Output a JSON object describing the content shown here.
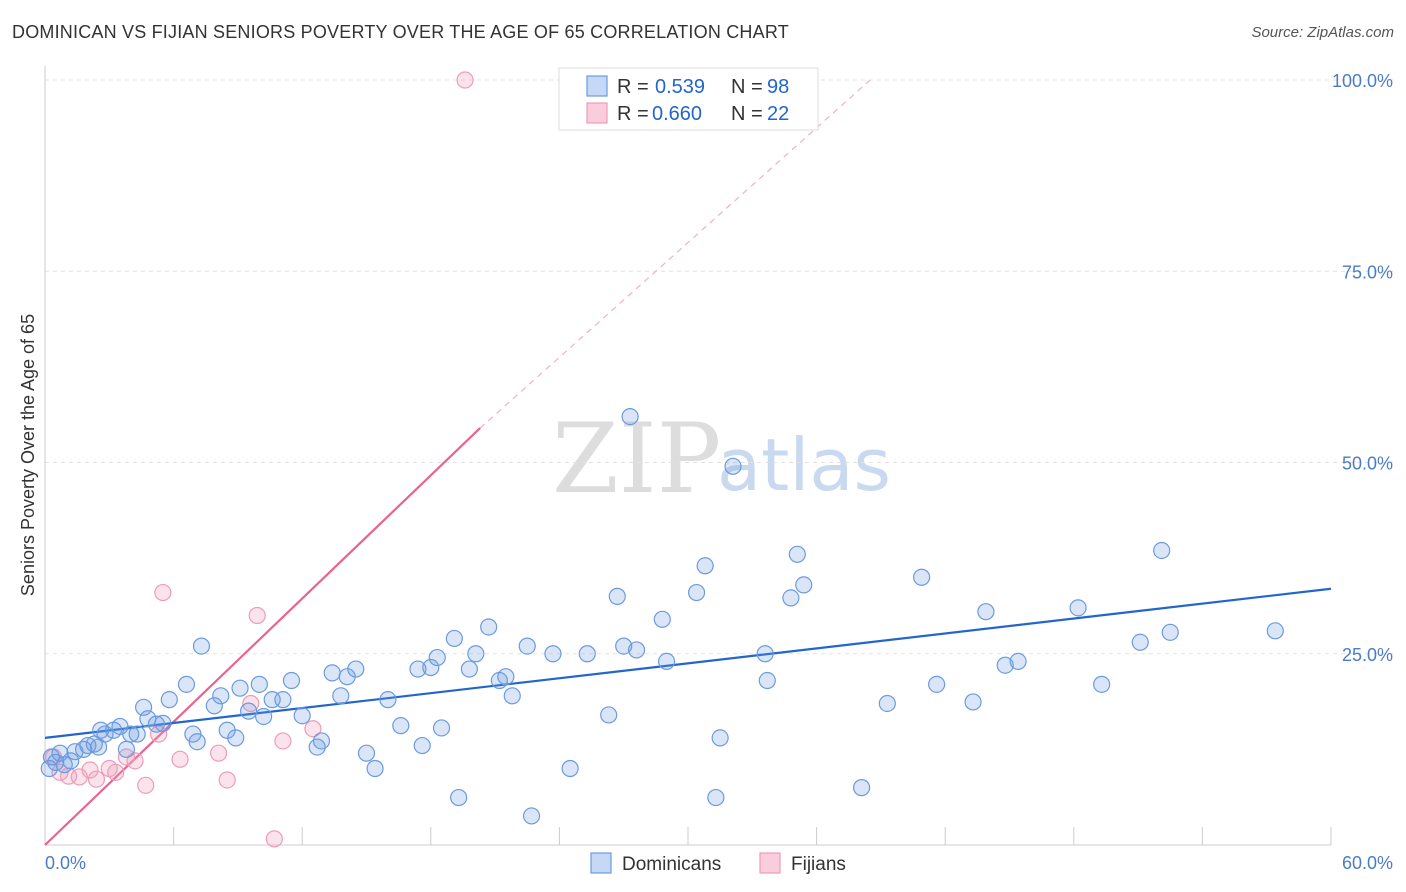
{
  "header": {
    "title": "DOMINICAN VS FIJIAN SENIORS POVERTY OVER THE AGE OF 65 CORRELATION CHART",
    "source": "Source: ZipAtlas.com"
  },
  "watermark": {
    "zip": "ZIP",
    "atlas": "atlas"
  },
  "legend": {
    "rows": [
      {
        "r_label": "R = ",
        "r_value": "0.539",
        "n_label": "N = ",
        "n_value": "98"
      },
      {
        "r_label": "R = ",
        "r_value": "0.660",
        "n_label": "N = ",
        "n_value": "22"
      }
    ],
    "bottom": [
      "Dominicans",
      "Fijians"
    ]
  },
  "chart_data": {
    "type": "scatter",
    "title": "DOMINICAN VS FIJIAN SENIORS POVERTY OVER THE AGE OF 65 CORRELATION CHART",
    "xlabel": "",
    "ylabel": "Seniors Poverty Over the Age of 65",
    "xlim": [
      0,
      60
    ],
    "ylim": [
      0,
      100
    ],
    "x_tick_labels": [
      "0.0%",
      "60.0%"
    ],
    "y_tick_labels": [
      "25.0%",
      "50.0%",
      "75.0%",
      "100.0%"
    ],
    "y_ticks": [
      25,
      50,
      75,
      100
    ],
    "colors": {
      "dominicans": "#6a9be0",
      "fijians": "#ef9bb8",
      "dominicans_line": "#2266cc",
      "fijians_line": "#e8648e",
      "tick_text": "#4a7cc7"
    },
    "series": [
      {
        "name": "Dominicans",
        "r": 0.539,
        "n": 98,
        "trend": {
          "x": [
            0,
            60
          ],
          "y": [
            14.0,
            33.5
          ]
        },
        "points": [
          [
            0.3,
            11.5
          ],
          [
            0.5,
            10.8
          ],
          [
            0.7,
            12.0
          ],
          [
            0.9,
            10.5
          ],
          [
            1.2,
            11.0
          ],
          [
            1.4,
            12.2
          ],
          [
            1.8,
            12.5
          ],
          [
            2.0,
            13.0
          ],
          [
            2.3,
            13.2
          ],
          [
            2.5,
            12.8
          ],
          [
            2.6,
            15.0
          ],
          [
            2.8,
            14.5
          ],
          [
            3.2,
            15.0
          ],
          [
            3.5,
            15.5
          ],
          [
            3.8,
            12.5
          ],
          [
            4.0,
            14.5
          ],
          [
            4.3,
            14.5
          ],
          [
            4.6,
            18.0
          ],
          [
            4.8,
            16.5
          ],
          [
            5.2,
            15.8
          ],
          [
            5.8,
            19.0
          ],
          [
            5.5,
            15.9
          ],
          [
            6.6,
            21.0
          ],
          [
            6.9,
            14.5
          ],
          [
            7.1,
            13.5
          ],
          [
            7.9,
            18.2
          ],
          [
            8.2,
            19.5
          ],
          [
            8.5,
            15.0
          ],
          [
            8.9,
            14.0
          ],
          [
            9.1,
            20.5
          ],
          [
            9.5,
            17.5
          ],
          [
            10.0,
            21.0
          ],
          [
            10.2,
            16.8
          ],
          [
            10.6,
            19.0
          ],
          [
            11.1,
            19.0
          ],
          [
            11.5,
            21.5
          ],
          [
            12.0,
            16.9
          ],
          [
            7.3,
            26.0
          ],
          [
            12.7,
            12.8
          ],
          [
            12.9,
            13.6
          ],
          [
            13.4,
            22.5
          ],
          [
            13.8,
            19.5
          ],
          [
            14.5,
            23.0
          ],
          [
            14.1,
            22.0
          ],
          [
            15.0,
            12.0
          ],
          [
            15.4,
            10.0
          ],
          [
            16.0,
            19.0
          ],
          [
            16.6,
            15.6
          ],
          [
            17.4,
            23.0
          ],
          [
            17.6,
            13.0
          ],
          [
            18.0,
            23.2
          ],
          [
            18.3,
            24.5
          ],
          [
            18.5,
            15.3
          ],
          [
            19.1,
            27.0
          ],
          [
            19.3,
            6.2
          ],
          [
            19.8,
            23.0
          ],
          [
            20.1,
            25.0
          ],
          [
            20.7,
            28.5
          ],
          [
            21.2,
            21.5
          ],
          [
            21.5,
            22.0
          ],
          [
            21.8,
            19.5
          ],
          [
            22.5,
            26.0
          ],
          [
            22.7,
            3.8
          ],
          [
            23.7,
            25.0
          ],
          [
            24.5,
            10.0
          ],
          [
            25.3,
            25.0
          ],
          [
            26.3,
            17.0
          ],
          [
            26.7,
            32.5
          ],
          [
            27.3,
            56.0
          ],
          [
            27.0,
            26.0
          ],
          [
            27.6,
            25.5
          ],
          [
            28.8,
            29.5
          ],
          [
            29.0,
            24.0
          ],
          [
            30.4,
            33.0
          ],
          [
            30.8,
            36.5
          ],
          [
            31.3,
            6.2
          ],
          [
            31.5,
            14.0
          ],
          [
            32.1,
            49.5
          ],
          [
            33.6,
            25.0
          ],
          [
            33.7,
            21.5
          ],
          [
            34.8,
            32.3
          ],
          [
            35.1,
            38.0
          ],
          [
            35.4,
            34.0
          ],
          [
            38.1,
            7.5
          ],
          [
            39.3,
            18.5
          ],
          [
            40.9,
            35.0
          ],
          [
            41.6,
            21.0
          ],
          [
            43.3,
            18.7
          ],
          [
            43.9,
            30.5
          ],
          [
            44.8,
            23.5
          ],
          [
            45.4,
            24.0
          ],
          [
            48.2,
            31.0
          ],
          [
            49.3,
            21.0
          ],
          [
            51.1,
            26.5
          ],
          [
            52.1,
            38.5
          ],
          [
            52.5,
            27.8
          ],
          [
            57.4,
            28.0
          ],
          [
            0.2,
            10.0
          ]
        ]
      },
      {
        "name": "Fijians",
        "r": 0.66,
        "n": 22,
        "trend": {
          "x": [
            0,
            20.3
          ],
          "y": [
            0,
            54.5
          ]
        },
        "trend_extension": {
          "x": [
            20.3,
            38.5
          ],
          "y": [
            54.5,
            100
          ]
        },
        "points": [
          [
            0.4,
            11.5
          ],
          [
            0.7,
            9.5
          ],
          [
            1.1,
            9.0
          ],
          [
            1.6,
            8.9
          ],
          [
            2.1,
            9.8
          ],
          [
            2.4,
            8.6
          ],
          [
            3.0,
            10.0
          ],
          [
            3.3,
            9.5
          ],
          [
            3.8,
            11.5
          ],
          [
            4.2,
            11.0
          ],
          [
            4.7,
            7.8
          ],
          [
            5.3,
            14.5
          ],
          [
            5.5,
            33.0
          ],
          [
            6.3,
            11.2
          ],
          [
            8.1,
            12.0
          ],
          [
            8.5,
            8.5
          ],
          [
            9.6,
            18.5
          ],
          [
            9.9,
            30.0
          ],
          [
            10.7,
            0.8
          ],
          [
            11.1,
            13.6
          ],
          [
            12.5,
            15.2
          ],
          [
            19.6,
            100.0
          ]
        ]
      }
    ]
  }
}
